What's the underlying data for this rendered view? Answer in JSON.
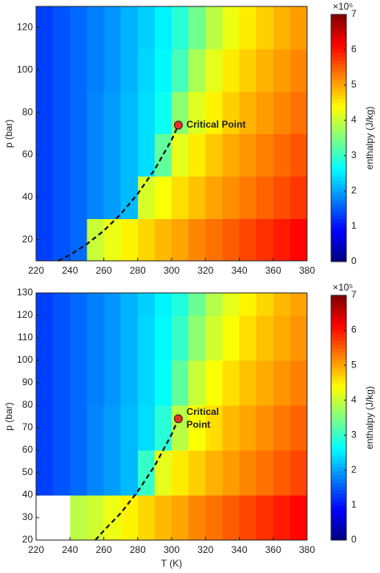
{
  "chart_data": [
    {
      "type": "heatmap",
      "y_label": "p (bar)",
      "colormap": "jet",
      "xlim": [
        220,
        380
      ],
      "xticks": [
        220,
        240,
        260,
        280,
        300,
        320,
        340,
        360,
        380
      ],
      "ylim": [
        10,
        130
      ],
      "yticks": [
        20,
        40,
        60,
        80,
        100,
        120
      ],
      "xbins": [
        220,
        230,
        240,
        250,
        260,
        270,
        280,
        290,
        300,
        310,
        320,
        330,
        340,
        350,
        360,
        370,
        380
      ],
      "ybins": [
        10,
        30,
        50,
        70,
        90,
        110,
        130
      ],
      "z": [
        [
          1.3,
          1.45,
          1.6,
          4.0,
          4.25,
          4.45,
          4.65,
          4.85,
          5.0,
          5.2,
          5.35,
          5.5,
          5.65,
          5.8,
          5.95,
          6.1
        ],
        [
          1.3,
          1.45,
          1.6,
          1.8,
          1.95,
          2.15,
          4.1,
          4.35,
          4.6,
          4.8,
          5.0,
          5.15,
          5.3,
          5.45,
          5.6,
          5.75
        ],
        [
          1.3,
          1.45,
          1.6,
          1.8,
          1.95,
          2.15,
          2.4,
          3.3,
          4.2,
          4.5,
          4.75,
          4.95,
          5.1,
          5.25,
          5.4,
          5.55
        ],
        [
          1.3,
          1.45,
          1.6,
          1.8,
          1.95,
          2.15,
          2.4,
          2.7,
          3.6,
          4.15,
          4.45,
          4.7,
          4.9,
          5.05,
          5.2,
          5.35
        ],
        [
          1.3,
          1.45,
          1.6,
          1.75,
          1.9,
          2.1,
          2.35,
          2.6,
          3.1,
          3.8,
          4.2,
          4.5,
          4.7,
          4.9,
          5.05,
          5.2
        ],
        [
          1.3,
          1.45,
          1.6,
          1.75,
          1.9,
          2.1,
          2.3,
          2.55,
          2.9,
          3.4,
          3.9,
          4.25,
          4.5,
          4.7,
          4.9,
          5.05
        ]
      ],
      "curve": {
        "x": [
          233,
          240,
          250,
          260,
          270,
          280,
          290,
          300,
          304
        ],
        "y": [
          10,
          12.8,
          17.9,
          24.2,
          32,
          41.6,
          53,
          67,
          74
        ]
      },
      "critical_point": {
        "x": 304,
        "y": 74,
        "label": [
          "Critical Point"
        ]
      },
      "colorbar": {
        "label": "enthalpy (J/kg)",
        "offset_label": "×10⁵",
        "lim": [
          0,
          7
        ],
        "ticks": [
          0,
          1,
          2,
          3,
          4,
          5,
          6,
          7
        ]
      }
    },
    {
      "type": "heatmap",
      "y_label": "p (bar)",
      "x_label": "T (K)",
      "colormap": "jet",
      "xlim": [
        220,
        380
      ],
      "xticks": [
        220,
        240,
        260,
        280,
        300,
        320,
        340,
        360,
        380
      ],
      "ylim": [
        20,
        130
      ],
      "yticks": [
        20,
        30,
        40,
        50,
        60,
        70,
        80,
        90,
        100,
        110,
        120,
        130
      ],
      "xbins": [
        220,
        230,
        240,
        250,
        260,
        270,
        280,
        290,
        300,
        310,
        320,
        330,
        340,
        350,
        360,
        370,
        380
      ],
      "ybins": [
        20,
        40,
        60,
        80,
        100,
        120,
        130
      ],
      "z": [
        [
          null,
          null,
          3.9,
          4.05,
          4.25,
          4.45,
          4.65,
          4.85,
          5.0,
          5.2,
          5.35,
          5.5,
          5.65,
          5.8,
          5.95,
          6.1
        ],
        [
          1.3,
          1.45,
          1.6,
          1.8,
          1.95,
          2.15,
          3.0,
          4.2,
          4.5,
          4.7,
          4.9,
          5.05,
          5.2,
          5.35,
          5.5,
          5.65
        ],
        [
          1.3,
          1.45,
          1.6,
          1.8,
          1.95,
          2.15,
          2.4,
          2.9,
          3.9,
          4.35,
          4.6,
          4.85,
          5.0,
          5.15,
          5.3,
          5.45
        ],
        [
          1.3,
          1.45,
          1.6,
          1.75,
          1.9,
          2.1,
          2.35,
          2.65,
          3.3,
          4.0,
          4.35,
          4.6,
          4.8,
          4.95,
          5.1,
          5.25
        ],
        [
          1.3,
          1.45,
          1.6,
          1.75,
          1.9,
          2.1,
          2.35,
          2.6,
          3.0,
          3.6,
          4.05,
          4.35,
          4.6,
          4.8,
          4.95,
          5.1
        ],
        [
          1.3,
          1.45,
          1.6,
          1.75,
          1.9,
          2.1,
          2.3,
          2.55,
          2.85,
          3.35,
          3.85,
          4.2,
          4.45,
          4.65,
          4.85,
          5.0
        ]
      ],
      "curve": {
        "x": [
          255,
          260,
          270,
          280,
          290,
          300,
          304
        ],
        "y": [
          20,
          24.2,
          32,
          41.6,
          53,
          67,
          74
        ]
      },
      "critical_point": {
        "x": 304,
        "y": 74,
        "label": [
          "Critical",
          "Point"
        ]
      },
      "colorbar": {
        "label": "enthalpy (J/kg)",
        "offset_label": "×10⁵",
        "lim": [
          0,
          7
        ],
        "ticks": [
          0,
          1,
          2,
          3,
          4,
          5,
          6,
          7
        ]
      }
    }
  ]
}
